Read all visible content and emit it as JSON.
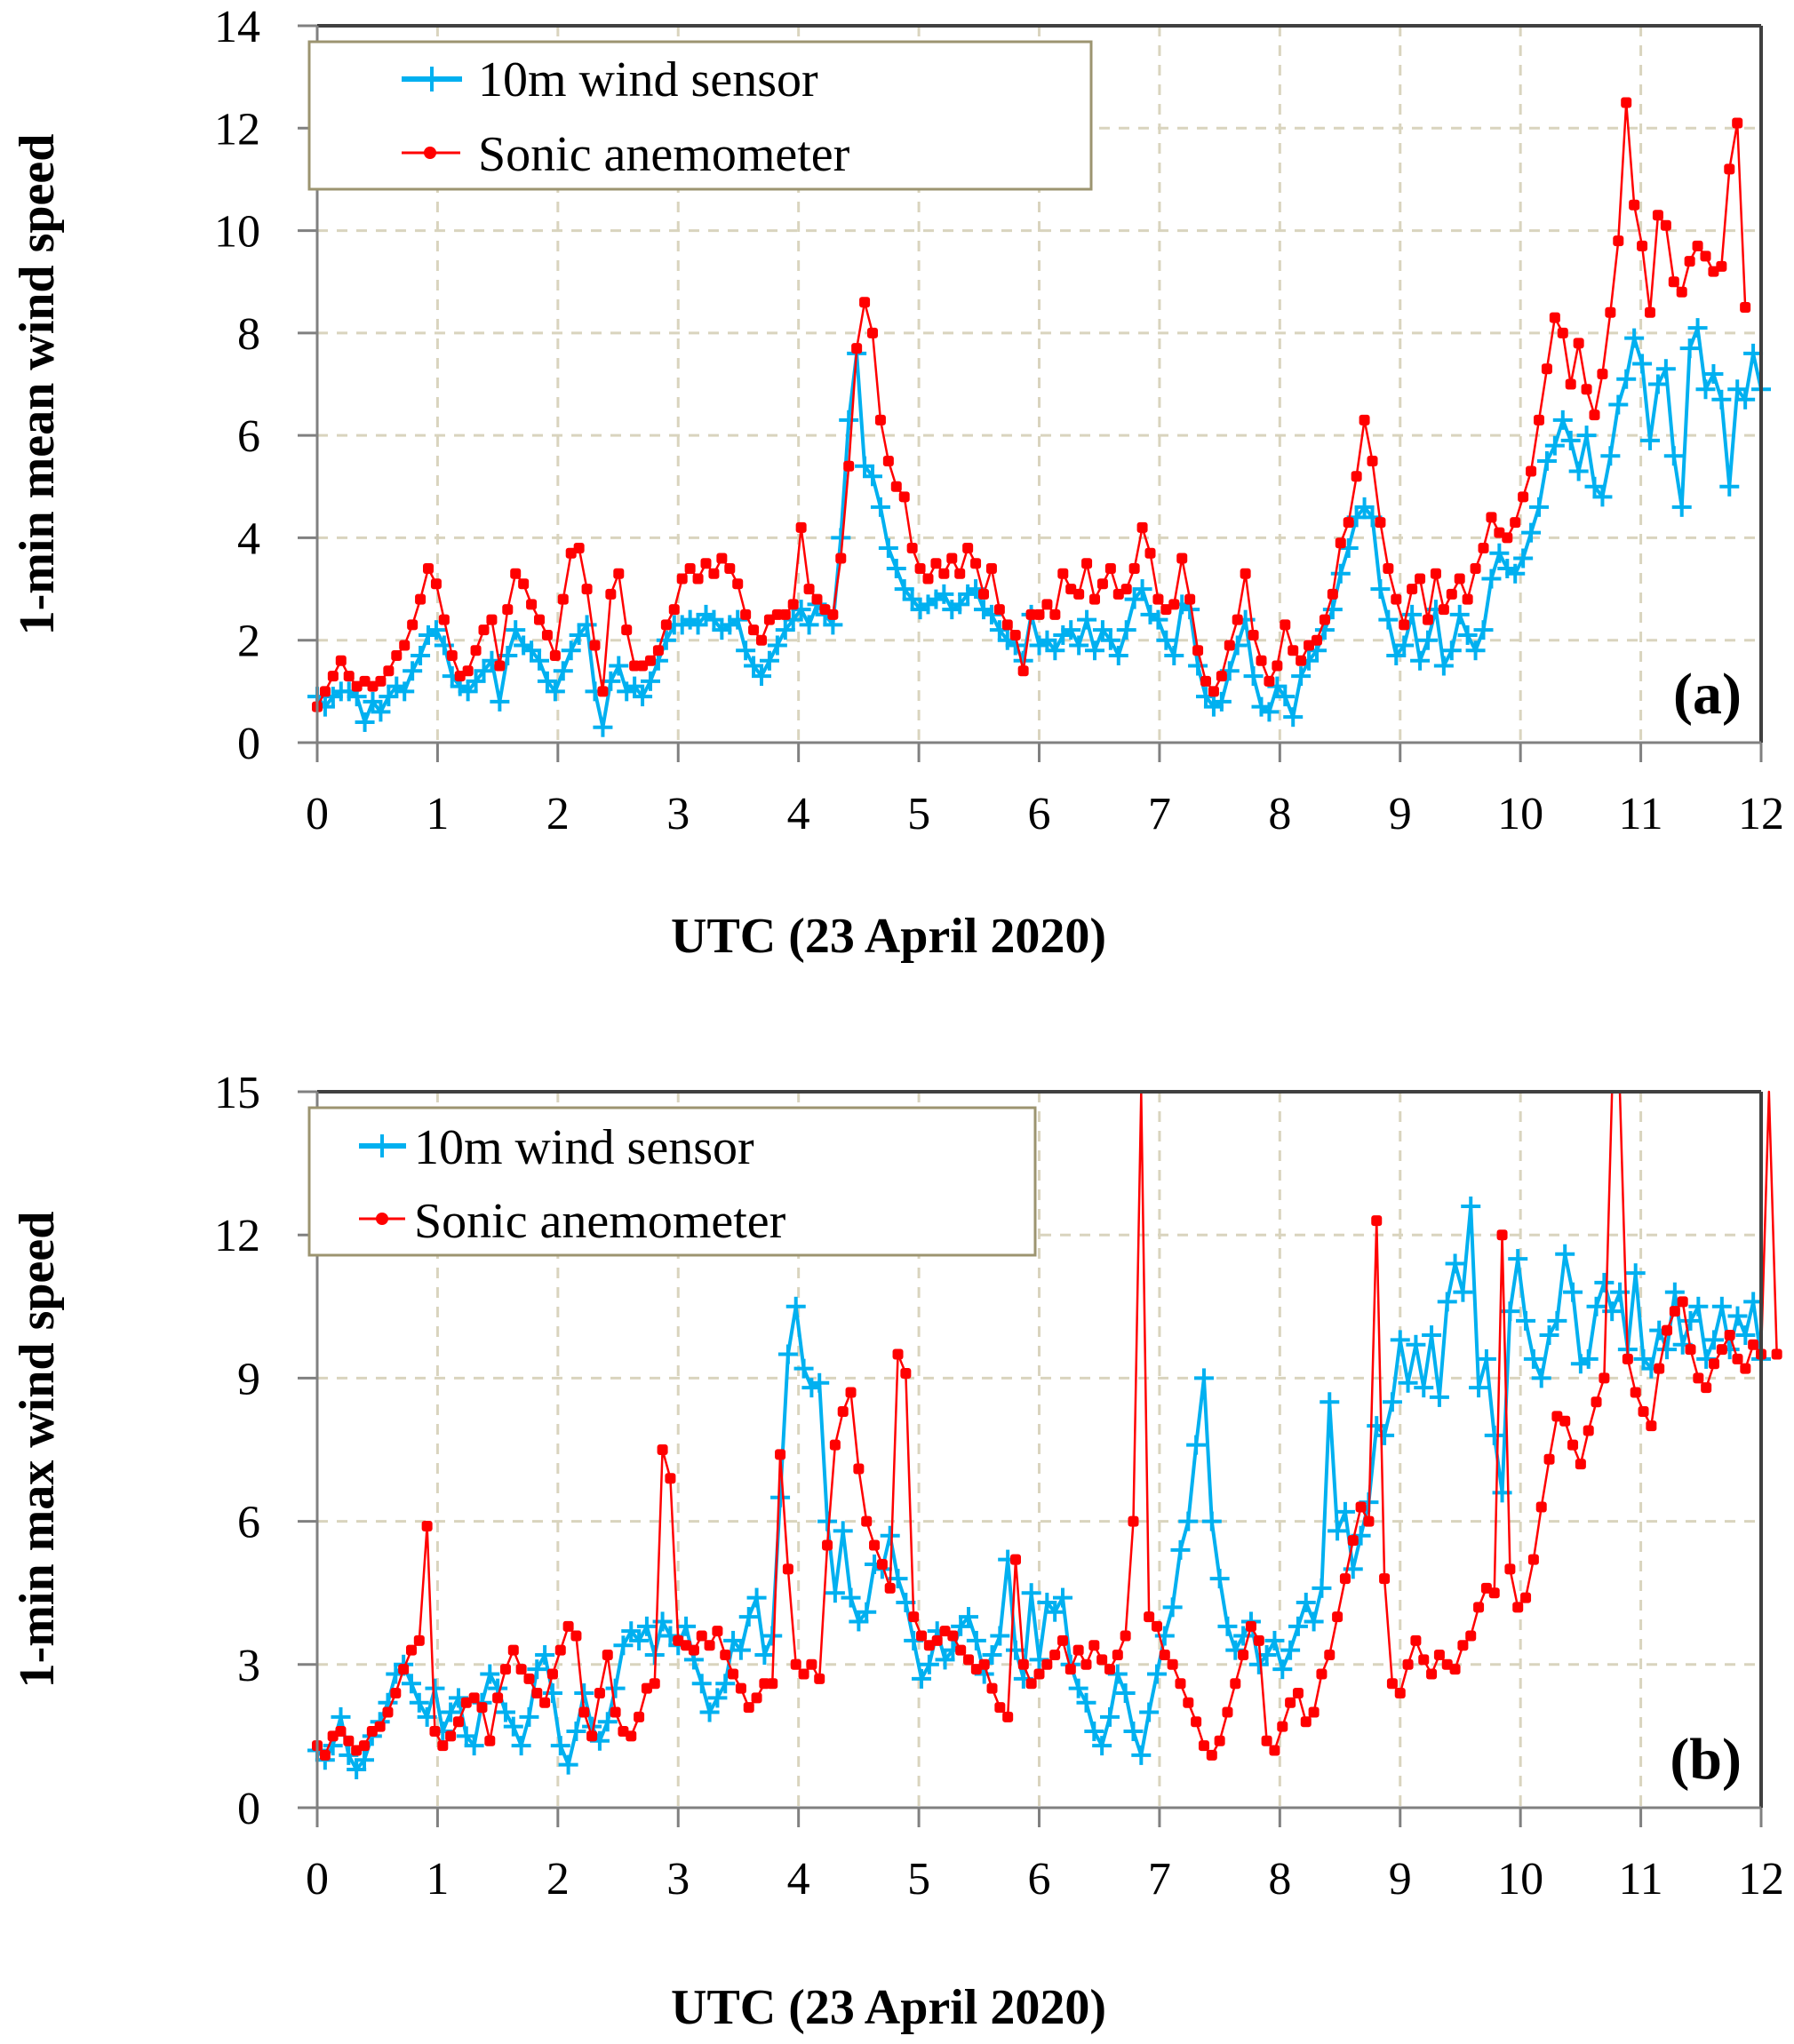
{
  "colors": {
    "wind_sensor": "#00B0F0",
    "sonic": "#FF0000",
    "grid": "#D9D4BE",
    "axis": "#808080",
    "frame": "#404040",
    "legend_border": "#9C9470"
  },
  "chart_data": [
    {
      "type": "line",
      "panel_label": "(a)",
      "title": "",
      "xlabel": "UTC (23 April 2020)",
      "ylabel": "1-min mean wind speed",
      "xlim": [
        0,
        12
      ],
      "ylim": [
        0,
        14
      ],
      "x_ticks": [
        0,
        1,
        2,
        3,
        4,
        5,
        6,
        7,
        8,
        9,
        10,
        11,
        12
      ],
      "x_tick_labels": [
        "0",
        "1",
        "2",
        "3",
        "4",
        "5",
        "6",
        "7",
        "8",
        "9",
        "10",
        "11",
        "12"
      ],
      "y_ticks": [
        0,
        2,
        4,
        6,
        8,
        10,
        12,
        14
      ],
      "y_tick_labels": [
        "0",
        "2",
        "4",
        "6",
        "8",
        "10",
        "12",
        "14"
      ],
      "grid": true,
      "legend_position": "top-left",
      "x_step_hours": 0.0667,
      "series": [
        {
          "name": "10m wind sensor",
          "marker": "plus",
          "values": [
            0.9,
            0.7,
            0.9,
            1.0,
            1.0,
            0.9,
            0.4,
            0.8,
            0.6,
            0.9,
            1.1,
            1.0,
            1.4,
            1.7,
            2.1,
            2.2,
            1.9,
            1.3,
            1.1,
            1.0,
            1.2,
            1.4,
            1.6,
            0.8,
            1.7,
            2.2,
            1.9,
            1.8,
            1.6,
            1.2,
            1.0,
            1.4,
            1.8,
            2.1,
            2.3,
            1.0,
            0.3,
            1.2,
            1.5,
            1.0,
            1.1,
            0.9,
            1.2,
            1.6,
            2.0,
            2.3,
            2.3,
            2.4,
            2.3,
            2.5,
            2.4,
            2.2,
            2.3,
            2.4,
            1.8,
            1.5,
            1.3,
            1.6,
            1.9,
            2.2,
            2.4,
            2.6,
            2.3,
            2.7,
            2.5,
            2.3,
            4.0,
            6.3,
            7.6,
            5.4,
            5.2,
            4.6,
            3.8,
            3.4,
            3.0,
            2.8,
            2.6,
            2.7,
            2.8,
            2.9,
            2.6,
            2.7,
            2.9,
            3.0,
            2.6,
            2.5,
            2.2,
            2.0,
            1.9,
            1.6,
            2.5,
            1.9,
            2.0,
            1.8,
            2.1,
            2.2,
            1.9,
            2.4,
            1.8,
            2.2,
            2.0,
            1.7,
            2.2,
            2.8,
            3.0,
            2.5,
            2.4,
            2.0,
            1.7,
            2.7,
            2.6,
            1.5,
            0.9,
            0.7,
            0.8,
            1.4,
            1.9,
            2.4,
            1.3,
            0.7,
            0.6,
            1.1,
            0.9,
            0.5,
            1.3,
            1.6,
            1.8,
            2.2,
            2.6,
            3.3,
            3.8,
            4.4,
            4.6,
            4.4,
            3.0,
            2.4,
            1.7,
            1.9,
            2.5,
            1.6,
            2.0,
            2.6,
            1.5,
            1.8,
            2.5,
            2.1,
            1.8,
            2.2,
            3.2,
            3.7,
            3.4,
            3.3,
            3.6,
            4.1,
            4.6,
            5.5,
            5.8,
            6.3,
            5.9,
            5.3,
            6.0,
            5.0,
            4.8,
            5.6,
            6.6,
            7.1,
            7.9,
            7.4,
            5.9,
            7.0,
            7.3,
            5.6,
            4.6,
            7.7,
            8.1,
            6.9,
            7.2,
            6.7,
            5.0,
            6.9,
            6.7,
            7.6,
            6.9
          ]
        },
        {
          "name": "Sonic anemometer",
          "marker": "circle",
          "values": [
            0.7,
            1.0,
            1.3,
            1.6,
            1.3,
            1.1,
            1.2,
            1.1,
            1.2,
            1.4,
            1.7,
            1.9,
            2.3,
            2.8,
            3.4,
            3.1,
            2.4,
            1.7,
            1.3,
            1.4,
            1.8,
            2.2,
            2.4,
            1.5,
            2.6,
            3.3,
            3.1,
            2.7,
            2.4,
            2.1,
            1.7,
            2.8,
            3.7,
            3.8,
            3.0,
            1.9,
            1.0,
            2.9,
            3.3,
            2.2,
            1.5,
            1.5,
            1.6,
            1.8,
            2.3,
            2.6,
            3.2,
            3.4,
            3.2,
            3.5,
            3.3,
            3.6,
            3.4,
            3.1,
            2.5,
            2.2,
            2.0,
            2.4,
            2.5,
            2.5,
            2.7,
            4.2,
            3.0,
            2.8,
            2.6,
            2.5,
            3.6,
            5.4,
            7.7,
            8.6,
            8.0,
            6.3,
            5.5,
            5.0,
            4.8,
            3.8,
            3.4,
            3.2,
            3.5,
            3.3,
            3.6,
            3.3,
            3.8,
            3.5,
            2.9,
            3.4,
            2.6,
            2.3,
            2.1,
            1.4,
            2.5,
            2.5,
            2.7,
            2.5,
            3.3,
            3.0,
            2.9,
            3.5,
            2.8,
            3.1,
            3.4,
            2.9,
            3.0,
            3.4,
            4.2,
            3.7,
            2.8,
            2.6,
            2.7,
            3.6,
            2.8,
            1.8,
            1.2,
            1.0,
            1.3,
            1.9,
            2.4,
            3.3,
            2.1,
            1.6,
            1.2,
            1.5,
            2.3,
            1.8,
            1.6,
            1.9,
            2.0,
            2.4,
            2.9,
            3.9,
            4.3,
            5.2,
            6.3,
            5.5,
            4.3,
            3.4,
            2.8,
            2.3,
            3.0,
            3.2,
            2.4,
            3.3,
            2.6,
            2.9,
            3.2,
            2.8,
            3.4,
            3.8,
            4.4,
            4.1,
            4.0,
            4.3,
            4.8,
            5.3,
            6.3,
            7.3,
            8.3,
            8.0,
            7.0,
            7.8,
            6.9,
            6.4,
            7.2,
            8.4,
            9.8,
            12.5,
            10.5,
            9.7,
            8.4,
            10.3,
            10.1,
            9.0,
            8.8,
            9.4,
            9.7,
            9.5,
            9.2,
            9.3,
            11.2,
            12.1,
            8.5
          ]
        }
      ]
    },
    {
      "type": "line",
      "panel_label": "(b)",
      "title": "",
      "xlabel": "UTC (23 April 2020)",
      "ylabel": "1-min max wind speed",
      "xlim": [
        0,
        12
      ],
      "ylim": [
        0,
        15
      ],
      "x_ticks": [
        0,
        1,
        2,
        3,
        4,
        5,
        6,
        7,
        8,
        9,
        10,
        11,
        12
      ],
      "x_tick_labels": [
        "0",
        "1",
        "2",
        "3",
        "4",
        "5",
        "6",
        "7",
        "8",
        "9",
        "10",
        "11",
        "12"
      ],
      "y_ticks": [
        0,
        3,
        6,
        9,
        12,
        15
      ],
      "y_tick_labels": [
        "0",
        "3",
        "6",
        "9",
        "12",
        "15"
      ],
      "grid": true,
      "legend_position": "top-left",
      "x_step_hours": 0.0667,
      "series": [
        {
          "name": "10m wind sensor",
          "marker": "plus",
          "values": [
            1.2,
            1.0,
            1.3,
            1.9,
            1.1,
            0.8,
            1.0,
            1.5,
            1.8,
            2.2,
            2.8,
            3.0,
            2.6,
            2.2,
            1.9,
            2.5,
            1.6,
            2.0,
            2.3,
            1.5,
            1.3,
            2.2,
            2.8,
            2.5,
            2.0,
            1.7,
            1.3,
            1.9,
            2.9,
            3.2,
            2.4,
            1.3,
            0.9,
            1.6,
            2.4,
            1.7,
            1.4,
            1.8,
            2.5,
            3.4,
            3.7,
            3.5,
            3.8,
            3.2,
            3.9,
            3.6,
            3.4,
            3.8,
            3.1,
            2.6,
            2.0,
            2.3,
            2.6,
            3.5,
            3.3,
            4.0,
            4.4,
            3.2,
            3.6,
            6.5,
            9.5,
            10.5,
            9.2,
            8.8,
            8.9,
            6.0,
            4.5,
            5.8,
            4.4,
            3.9,
            4.1,
            5.1,
            5.0,
            5.7,
            4.8,
            4.3,
            3.5,
            2.7,
            3.0,
            3.7,
            3.1,
            3.3,
            3.8,
            4.0,
            3.5,
            2.8,
            3.2,
            3.6,
            5.2,
            3.3,
            2.7,
            4.5,
            3.1,
            4.3,
            4.1,
            4.4,
            3.0,
            2.5,
            2.2,
            1.6,
            1.3,
            1.9,
            2.8,
            2.4,
            1.6,
            1.1,
            2.0,
            2.8,
            3.6,
            4.2,
            5.4,
            6.0,
            7.6,
            9.0,
            6.0,
            4.8,
            3.8,
            3.3,
            3.6,
            3.9,
            3.0,
            3.2,
            3.5,
            2.9,
            3.3,
            3.8,
            4.3,
            3.9,
            4.6,
            8.5,
            5.8,
            6.2,
            5.0,
            5.7,
            6.4,
            8.0,
            7.8,
            8.5,
            9.8,
            8.9,
            9.7,
            8.8,
            9.9,
            8.6,
            10.6,
            11.4,
            10.8,
            12.6,
            8.8,
            9.4,
            7.8,
            6.6,
            10.4,
            11.5,
            10.2,
            9.4,
            9.0,
            9.9,
            10.2,
            11.6,
            10.8,
            9.3,
            9.4,
            10.5,
            11.0,
            10.4,
            10.8,
            9.6,
            11.2,
            9.4,
            9.2,
            10.0,
            9.6,
            10.8,
            9.7,
            10.2,
            10.5,
            9.4,
            9.8,
            10.5,
            9.6,
            10.3,
            9.9,
            10.6,
            9.4
          ]
        },
        {
          "name": "Sonic anemometer",
          "marker": "circle",
          "values": [
            1.3,
            1.1,
            1.5,
            1.6,
            1.4,
            1.2,
            1.3,
            1.6,
            1.7,
            2.0,
            2.4,
            2.9,
            3.3,
            3.5,
            5.9,
            1.6,
            1.3,
            1.5,
            1.8,
            2.2,
            2.3,
            2.1,
            1.4,
            2.3,
            2.9,
            3.3,
            2.9,
            2.7,
            2.4,
            2.2,
            2.8,
            3.3,
            3.8,
            3.6,
            2.0,
            1.5,
            2.4,
            3.2,
            2.0,
            1.6,
            1.5,
            1.9,
            2.5,
            2.6,
            7.5,
            6.9,
            3.5,
            3.4,
            3.3,
            3.6,
            3.4,
            3.7,
            3.2,
            2.8,
            2.5,
            2.1,
            2.3,
            2.6,
            2.6,
            7.4,
            5.0,
            3.0,
            2.8,
            3.0,
            2.7,
            5.5,
            7.6,
            8.3,
            8.7,
            7.1,
            6.0,
            5.5,
            5.1,
            4.6,
            9.5,
            9.1,
            4.0,
            3.6,
            3.4,
            3.5,
            3.7,
            3.6,
            3.3,
            3.1,
            2.9,
            3.0,
            2.5,
            2.1,
            1.9,
            5.2,
            3.0,
            2.6,
            2.8,
            3.0,
            3.2,
            3.5,
            2.9,
            3.3,
            3.0,
            3.4,
            3.1,
            2.9,
            3.2,
            3.6,
            6.0,
            15.0,
            4.0,
            3.8,
            3.2,
            3.0,
            2.6,
            2.2,
            1.8,
            1.3,
            1.1,
            1.4,
            2.0,
            2.6,
            3.2,
            3.8,
            3.5,
            1.4,
            1.2,
            1.7,
            2.2,
            2.4,
            1.8,
            2.0,
            2.8,
            3.2,
            4.0,
            4.8,
            5.6,
            6.3,
            6.0,
            12.3,
            4.8,
            2.6,
            2.4,
            3.0,
            3.5,
            3.1,
            2.8,
            3.2,
            3.0,
            2.9,
            3.4,
            3.6,
            4.2,
            4.6,
            4.5,
            12.0,
            5.0,
            4.2,
            4.4,
            5.2,
            6.3,
            7.3,
            8.2,
            8.1,
            7.6,
            7.2,
            7.9,
            8.5,
            9.0,
            15.0,
            15.0,
            9.4,
            8.7,
            8.3,
            8.0,
            9.2,
            10.0,
            10.4,
            10.6,
            9.6,
            9.0,
            8.8,
            9.3,
            9.6,
            9.9,
            9.4,
            9.2,
            9.7,
            9.5,
            15.0,
            9.5
          ]
        }
      ]
    }
  ]
}
